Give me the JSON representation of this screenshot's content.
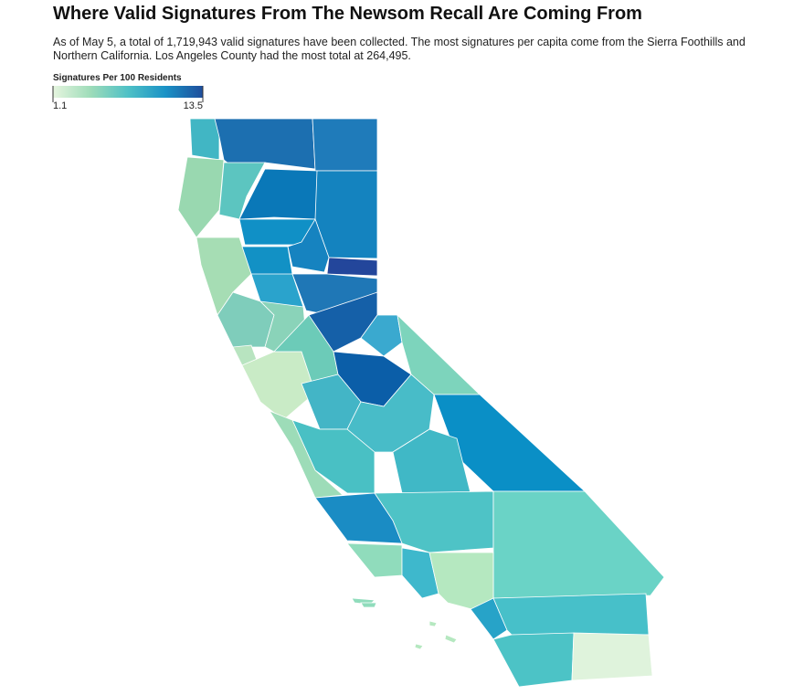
{
  "header": {
    "title": "Where Valid Signatures From The Newsom Recall Are Coming From",
    "subtitle": "As of May 5, a total of 1,719,943 valid signatures have been collected. The most signatures per capita come from the Sierra Foothills and Northern California. Los Angeles County had the most total at 264,495."
  },
  "legend": {
    "title": "Signatures Per 100 Residents",
    "min": 1.1,
    "max": 13.5,
    "colors": [
      "#e6f5df",
      "#9edcb9",
      "#4fc1c6",
      "#1a92c6",
      "#1f4e9c"
    ]
  }
}
